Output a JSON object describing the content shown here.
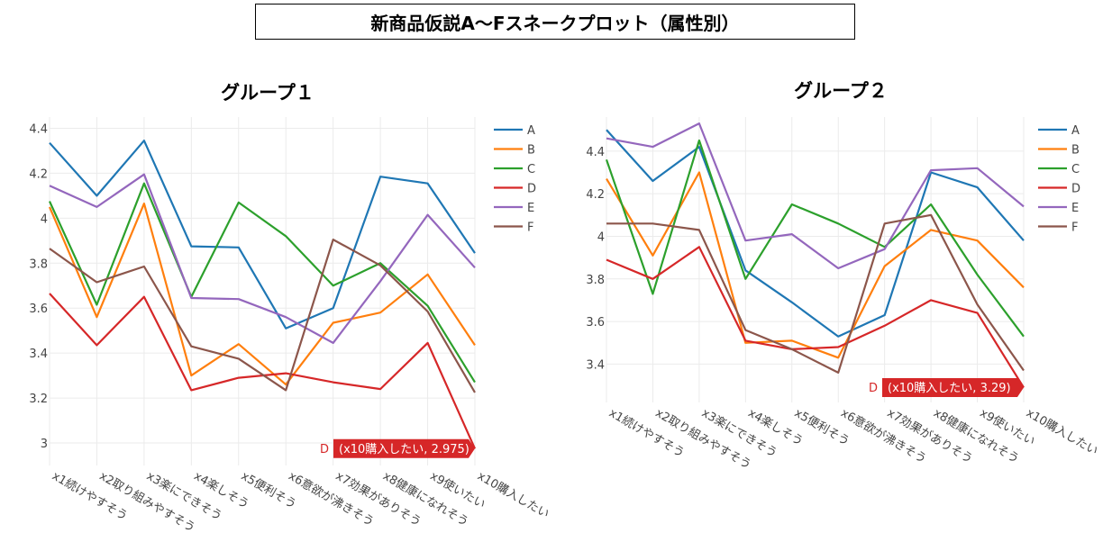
{
  "title": "新商品仮説A～Fスネークプロット（属性別）",
  "colors": {
    "A": "#1f77b4",
    "B": "#ff7f0e",
    "C": "#2ca02c",
    "D": "#d62728",
    "E": "#9467bd",
    "F": "#8c564b"
  },
  "chart_data": [
    {
      "type": "line",
      "title": "グループ１",
      "categories": [
        "x1続けやすそう",
        "x2取り組みやすそう",
        "x3楽にできそう",
        "x4楽しそう",
        "x5便利そう",
        "x6意欲が沸きそう",
        "x7効果がありそう",
        "x8健康になれそう",
        "x9使いたい",
        "x10購入したい"
      ],
      "ylim": [
        2.9,
        4.45
      ],
      "yticks": [
        "3",
        "3.2",
        "3.4",
        "3.6",
        "3.8",
        "4",
        "4.2",
        "4.4"
      ],
      "grid": true,
      "legend": "top-right",
      "series": [
        {
          "name": "A",
          "values": [
            4.335,
            4.1,
            4.345,
            3.875,
            3.87,
            3.51,
            3.6,
            4.185,
            4.155,
            3.845
          ]
        },
        {
          "name": "B",
          "values": [
            4.05,
            3.56,
            4.065,
            3.3,
            3.44,
            3.26,
            3.535,
            3.58,
            3.75,
            3.435
          ]
        },
        {
          "name": "C",
          "values": [
            4.075,
            3.615,
            4.155,
            3.65,
            4.07,
            3.92,
            3.7,
            3.8,
            3.61,
            3.27
          ]
        },
        {
          "name": "D",
          "values": [
            3.665,
            3.435,
            3.65,
            3.235,
            3.29,
            3.31,
            3.27,
            3.24,
            3.445,
            2.975
          ]
        },
        {
          "name": "E",
          "values": [
            4.145,
            4.05,
            4.195,
            3.645,
            3.64,
            3.56,
            3.445,
            3.72,
            4.015,
            3.78
          ]
        },
        {
          "name": "F",
          "values": [
            3.865,
            3.715,
            3.785,
            3.43,
            3.375,
            3.235,
            3.905,
            3.79,
            3.585,
            3.225
          ]
        }
      ],
      "hover_label": "(x10購入したい, 2.975)",
      "hover_series": "D"
    },
    {
      "type": "line",
      "title": "グループ２",
      "categories": [
        "x1続けやすそう",
        "x2取り組みやすそう",
        "x3楽にできそう",
        "x4楽しそう",
        "x5便利そう",
        "x6意欲が沸きそう",
        "x7効果がありそう",
        "x8健康になれそう",
        "x9使いたい",
        "x10購入したい"
      ],
      "ylim": [
        3.22,
        4.56
      ],
      "yticks": [
        "3.4",
        "3.6",
        "3.8",
        "4",
        "4.2",
        "4.4"
      ],
      "grid": true,
      "legend": "top-right",
      "series": [
        {
          "name": "A",
          "values": [
            4.5,
            4.26,
            4.42,
            3.84,
            3.69,
            3.53,
            3.63,
            4.3,
            4.23,
            3.98
          ]
        },
        {
          "name": "B",
          "values": [
            4.27,
            3.91,
            4.3,
            3.5,
            3.51,
            3.43,
            3.86,
            4.03,
            3.98,
            3.76
          ]
        },
        {
          "name": "C",
          "values": [
            4.36,
            3.73,
            4.45,
            3.8,
            4.15,
            4.06,
            3.95,
            4.15,
            3.82,
            3.53
          ]
        },
        {
          "name": "D",
          "values": [
            3.89,
            3.8,
            3.95,
            3.51,
            3.47,
            3.48,
            3.58,
            3.7,
            3.64,
            3.29
          ]
        },
        {
          "name": "E",
          "values": [
            4.46,
            4.42,
            4.53,
            3.98,
            4.01,
            3.85,
            3.94,
            4.31,
            4.32,
            4.14
          ]
        },
        {
          "name": "F",
          "values": [
            4.06,
            4.06,
            4.03,
            3.56,
            3.47,
            3.36,
            4.06,
            4.1,
            3.68,
            3.37
          ]
        }
      ],
      "hover_label": "(x10購入したい, 3.29)",
      "hover_series": "D"
    }
  ]
}
